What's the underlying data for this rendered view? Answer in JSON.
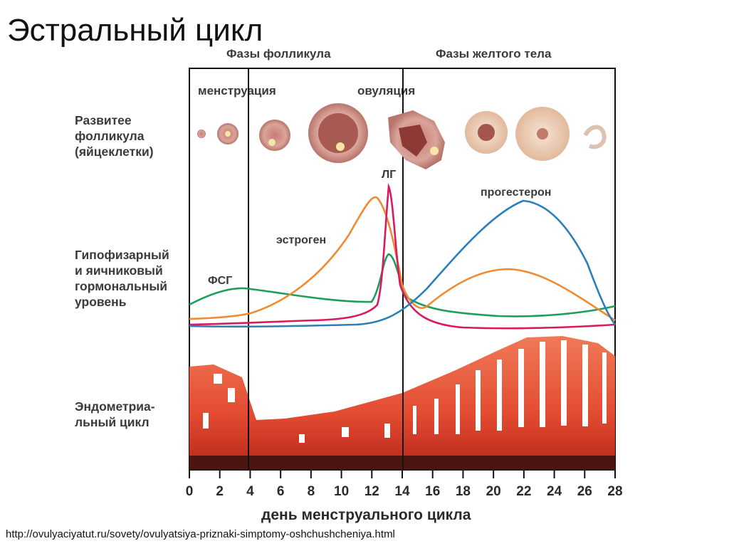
{
  "slide_title": "Эстральный цикл",
  "source_url": "http://ovulyaciyatut.ru/sovety/ovulyatsiya-priznaki-simptomy-oshchushcheniya.html",
  "phases": {
    "follicular": "Фазы фолликула",
    "luteal": "Фазы желтого тела"
  },
  "markers": {
    "menstruation": "менструация",
    "ovulation": "овуляция"
  },
  "row_labels": {
    "follicle": "Развитее\nфолликула\n(яйцеклетки)",
    "hormones": "Гипофизарный\nи яичниковый\nгормональный\nуровень",
    "endometrium": "Эндометриа-\nльный цикл"
  },
  "hormones": {
    "fsg": {
      "label": "ФСГ",
      "color": "#1e9e5a"
    },
    "lg": {
      "label": "ЛГ",
      "color": "#d81b60"
    },
    "estrogen": {
      "label": "эстроген",
      "color": "#f08a30"
    },
    "progesterone": {
      "label": "прогестерон",
      "color": "#2a7fb8"
    }
  },
  "x_axis": {
    "title": "день менструального цикла",
    "ticks": [
      "0",
      "2",
      "4",
      "6",
      "8",
      "10",
      "12",
      "14",
      "16",
      "18",
      "20",
      "22",
      "24",
      "26",
      "28"
    ]
  },
  "colors": {
    "endometrium_light": "#ef6a48",
    "endometrium_dark": "#b7261a",
    "follicle": "#d99a90",
    "corpus_luteum": "#f1d6c2"
  }
}
